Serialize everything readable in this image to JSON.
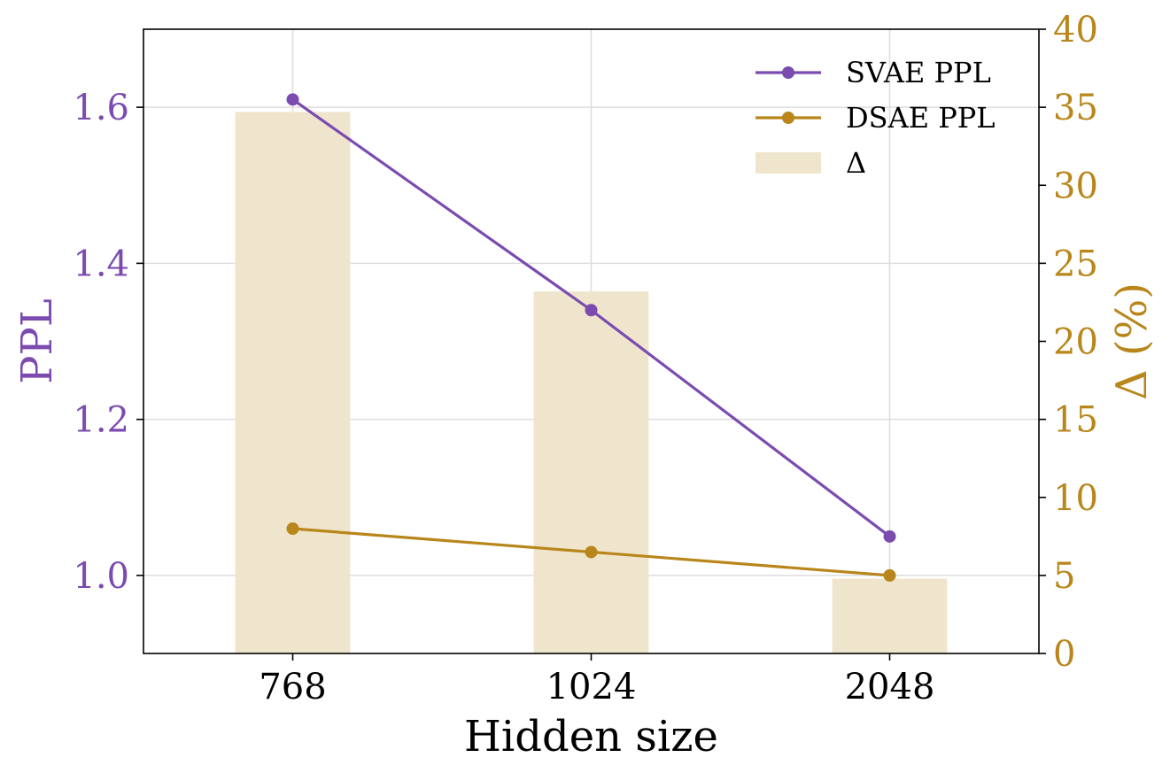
{
  "colors": {
    "svae": "#7b4bb0",
    "dsae": "#b8861a",
    "delta_bar": "#efe5cd",
    "grid": "#dddddd",
    "axis": "#000000"
  },
  "chart_data": {
    "type": "bar+line",
    "categories": [
      "768",
      "1024",
      "2048"
    ],
    "xlabel": "Hidden size",
    "ylabel_left": "PPL",
    "ylabel_right": "Δ (%)",
    "ylim_left": [
      0.9,
      1.7
    ],
    "ylim_right": [
      0,
      40
    ],
    "yticks_left": [
      "1.0",
      "1.2",
      "1.4",
      "1.6"
    ],
    "yticks_right": [
      "0",
      "5",
      "10",
      "15",
      "20",
      "25",
      "30",
      "35",
      "40"
    ],
    "grid": true,
    "legend_position": "top-right",
    "series": [
      {
        "name": "SVAE PPL",
        "type": "line",
        "axis": "left",
        "values": [
          1.61,
          1.34,
          1.05
        ]
      },
      {
        "name": "DSAE PPL",
        "type": "line",
        "axis": "left",
        "values": [
          1.06,
          1.03,
          1.0
        ]
      },
      {
        "name": "Δ",
        "type": "bar",
        "axis": "right",
        "values": [
          34.7,
          23.2,
          4.8
        ]
      }
    ]
  }
}
